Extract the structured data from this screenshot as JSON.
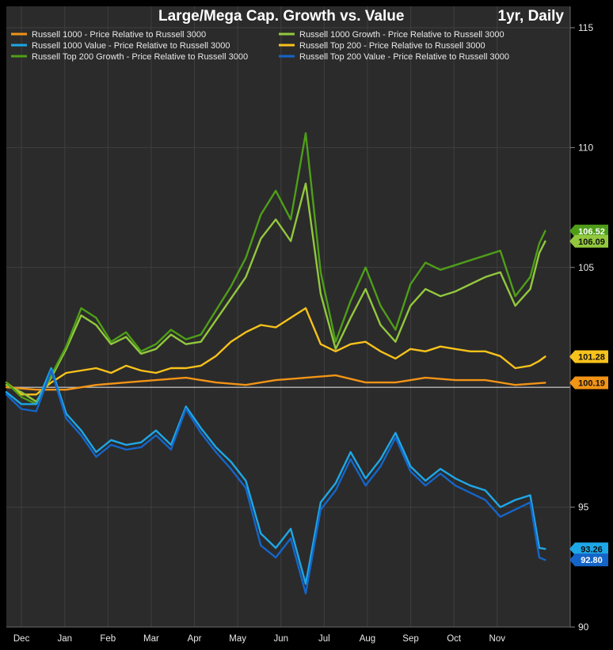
{
  "chart_data": {
    "type": "line",
    "title": "Large/Mega Cap. Growth vs. Value",
    "subtitle": "1yr, Daily",
    "ylim": [
      90,
      115
    ],
    "y_ticks": [
      90,
      95,
      105,
      110,
      115
    ],
    "x_ticks": [
      "Dec",
      "Jan",
      "Feb",
      "Mar",
      "Apr",
      "May",
      "Jun",
      "Jul",
      "Aug",
      "Sep",
      "Oct",
      "Nov"
    ],
    "x_range_days": [
      0,
      364
    ],
    "grid": true,
    "legend_position": "top-left",
    "reference_value": 100,
    "series": [
      {
        "name": "Russell 1000 - Price Relative to Russell 3000",
        "color": "#f29416",
        "last_value": "100.19",
        "x": [
          0,
          20,
          40,
          60,
          80,
          100,
          120,
          140,
          160,
          180,
          200,
          220,
          240,
          260,
          280,
          300,
          320,
          340,
          360
        ],
        "y": [
          100.0,
          99.9,
          99.9,
          100.1,
          100.2,
          100.3,
          100.4,
          100.2,
          100.1,
          100.3,
          100.4,
          100.5,
          100.2,
          100.2,
          100.4,
          100.3,
          100.3,
          100.1,
          100.19
        ]
      },
      {
        "name": "Russell 1000 Value - Price Relative to Russell 3000",
        "color": "#1ea7e6",
        "last_value": "93.26",
        "x": [
          0,
          10,
          20,
          30,
          40,
          50,
          60,
          70,
          80,
          90,
          100,
          110,
          120,
          130,
          140,
          150,
          160,
          170,
          180,
          190,
          200,
          210,
          220,
          230,
          240,
          250,
          260,
          270,
          280,
          290,
          300,
          310,
          320,
          330,
          340,
          350,
          356,
          360
        ],
        "y": [
          99.8,
          99.3,
          99.3,
          100.8,
          98.9,
          98.2,
          97.3,
          97.8,
          97.6,
          97.7,
          98.2,
          97.6,
          99.2,
          98.3,
          97.5,
          96.9,
          96.1,
          93.9,
          93.3,
          94.1,
          91.8,
          95.2,
          96.0,
          97.3,
          96.2,
          97.0,
          98.1,
          96.7,
          96.1,
          96.6,
          96.2,
          95.9,
          95.7,
          95.0,
          95.3,
          95.5,
          93.3,
          93.26
        ]
      },
      {
        "name": "Russell Top 200 Growth - Price Relative to Russell 3000",
        "color": "#4e9e18",
        "last_value": "106.52",
        "x": [
          0,
          10,
          20,
          30,
          40,
          50,
          60,
          70,
          80,
          90,
          100,
          110,
          120,
          130,
          140,
          150,
          160,
          170,
          180,
          190,
          200,
          210,
          220,
          230,
          240,
          250,
          260,
          270,
          280,
          290,
          300,
          310,
          320,
          330,
          340,
          350,
          356,
          360
        ],
        "y": [
          100.2,
          99.6,
          99.3,
          100.5,
          101.7,
          103.3,
          102.9,
          101.9,
          102.3,
          101.5,
          101.8,
          102.4,
          102.0,
          102.2,
          103.2,
          104.2,
          105.4,
          107.2,
          108.2,
          107.0,
          110.6,
          104.8,
          101.9,
          103.6,
          105.0,
          103.4,
          102.4,
          104.3,
          105.2,
          104.9,
          105.1,
          105.3,
          105.5,
          105.7,
          103.8,
          104.6,
          106.0,
          106.52
        ]
      },
      {
        "name": "Russell 1000 Growth - Price Relative to Russell 3000",
        "color": "#93c83e",
        "last_value": "106.09",
        "x": [
          0,
          10,
          20,
          30,
          40,
          50,
          60,
          70,
          80,
          90,
          100,
          110,
          120,
          130,
          140,
          150,
          160,
          170,
          180,
          190,
          200,
          210,
          220,
          230,
          240,
          250,
          260,
          270,
          280,
          290,
          300,
          310,
          320,
          330,
          340,
          350,
          356,
          360
        ],
        "y": [
          100.1,
          99.8,
          99.4,
          100.4,
          101.6,
          103.0,
          102.6,
          101.8,
          102.1,
          101.4,
          101.6,
          102.2,
          101.8,
          101.9,
          102.8,
          103.7,
          104.6,
          106.2,
          107.0,
          106.1,
          108.5,
          103.9,
          101.6,
          102.9,
          104.1,
          102.6,
          101.9,
          103.4,
          104.1,
          103.8,
          104.0,
          104.3,
          104.6,
          104.8,
          103.4,
          104.1,
          105.6,
          106.09
        ]
      },
      {
        "name": "Russell Top 200 - Price Relative to Russell 3000",
        "color": "#f7c21b",
        "last_value": "101.28",
        "x": [
          0,
          10,
          20,
          30,
          40,
          50,
          60,
          70,
          80,
          90,
          100,
          110,
          120,
          130,
          140,
          150,
          160,
          170,
          180,
          190,
          200,
          210,
          220,
          230,
          240,
          250,
          260,
          270,
          280,
          290,
          300,
          310,
          320,
          330,
          340,
          350,
          356,
          360
        ],
        "y": [
          100.2,
          99.7,
          99.7,
          100.2,
          100.6,
          100.7,
          100.8,
          100.6,
          100.9,
          100.7,
          100.6,
          100.8,
          100.8,
          100.9,
          101.3,
          101.9,
          102.3,
          102.6,
          102.5,
          102.9,
          103.3,
          101.8,
          101.5,
          101.8,
          101.9,
          101.5,
          101.2,
          101.6,
          101.5,
          101.7,
          101.6,
          101.5,
          101.5,
          101.3,
          100.8,
          100.9,
          101.1,
          101.28
        ]
      },
      {
        "name": "Russell Top 200 Value - Price Relative to Russell 3000",
        "color": "#1565c8",
        "last_value": "92.80",
        "x": [
          0,
          10,
          20,
          30,
          40,
          50,
          60,
          70,
          80,
          90,
          100,
          110,
          120,
          130,
          140,
          150,
          160,
          170,
          180,
          190,
          200,
          210,
          220,
          230,
          240,
          250,
          260,
          270,
          280,
          290,
          300,
          310,
          320,
          330,
          340,
          350,
          356,
          360
        ],
        "y": [
          99.7,
          99.1,
          99.0,
          100.7,
          98.7,
          98.0,
          97.1,
          97.6,
          97.4,
          97.5,
          98.0,
          97.4,
          99.1,
          98.1,
          97.3,
          96.6,
          95.8,
          93.4,
          92.9,
          93.7,
          91.4,
          94.9,
          95.7,
          97.0,
          95.9,
          96.7,
          97.9,
          96.5,
          95.9,
          96.4,
          95.9,
          95.6,
          95.3,
          94.6,
          94.9,
          95.2,
          92.9,
          92.8
        ]
      }
    ]
  }
}
